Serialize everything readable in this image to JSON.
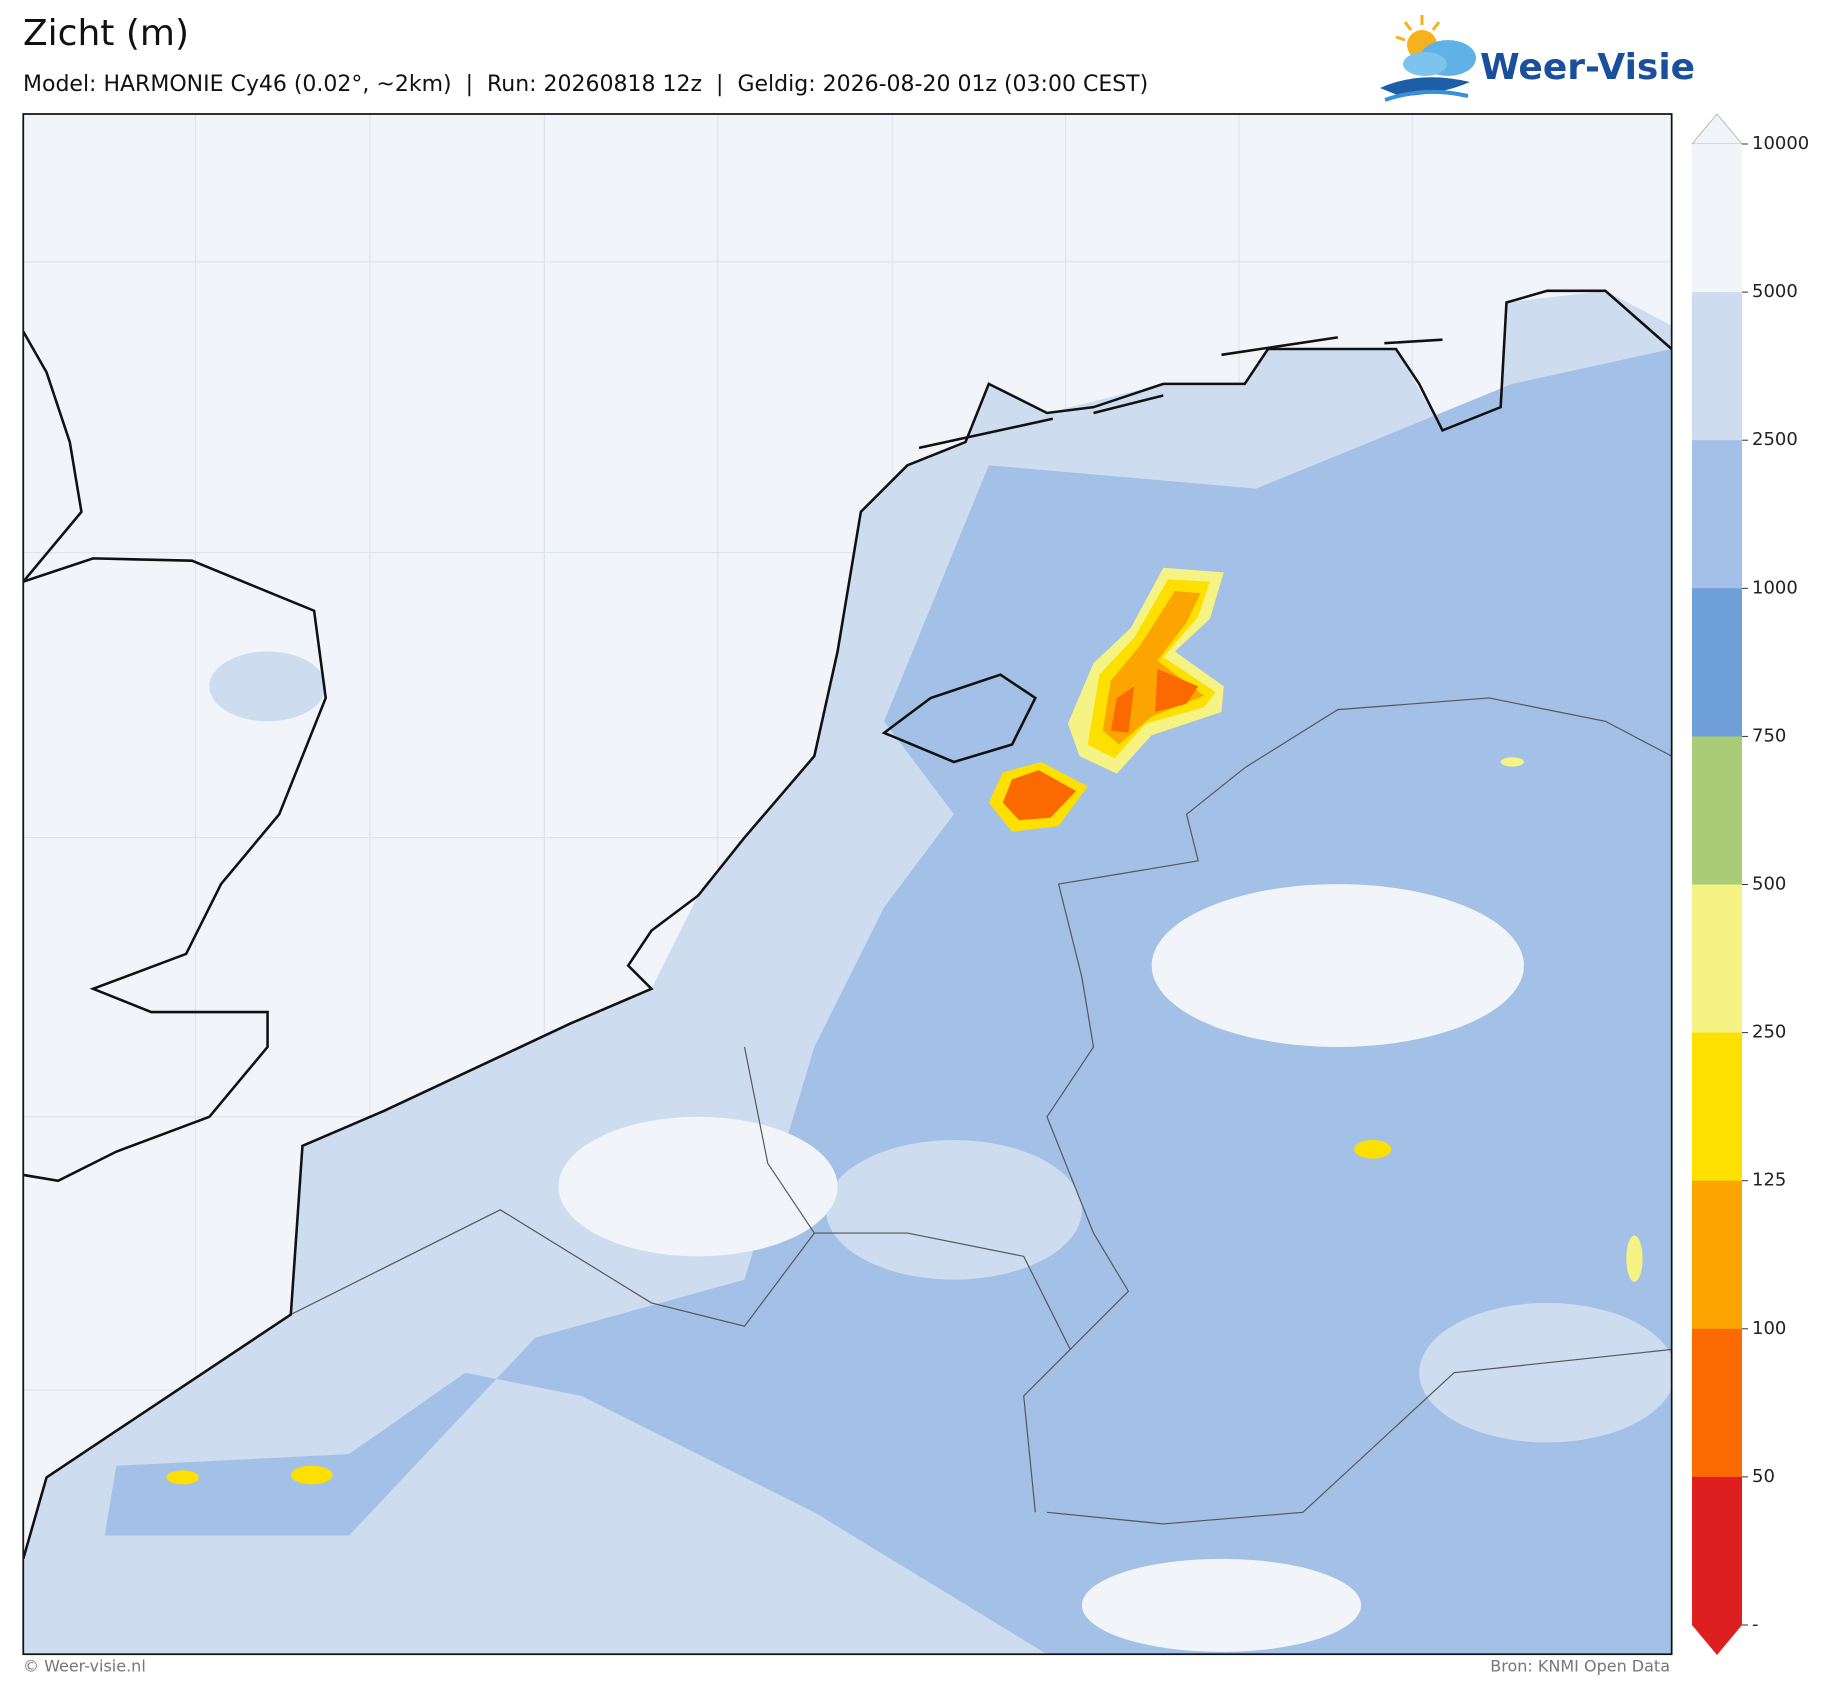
{
  "header": {
    "title": "Zicht (m)",
    "subtitle": "Model: HARMONIE Cy46 (0.02°, ~2km)  |  Run: 20260818 12z  |  Geldig: 2026-08-20 01z (03:00 CEST)",
    "logo": "Weer-Visie"
  },
  "legend": {
    "ticks": [
      10000,
      5000,
      2500,
      1000,
      750,
      500,
      250,
      125,
      100,
      50
    ],
    "bottom_label": "-",
    "colors": [
      "#f1f4f9",
      "#cddcef",
      "#a3c0e6",
      "#6f9fd8",
      "#a8cc78",
      "#f5f384",
      "#fde000",
      "#fca500",
      "#fb6a00",
      "#de1f1f"
    ]
  },
  "footer": {
    "credit": "© Weer-visie.nl",
    "source": "Bron: KNMI Open Data"
  }
}
